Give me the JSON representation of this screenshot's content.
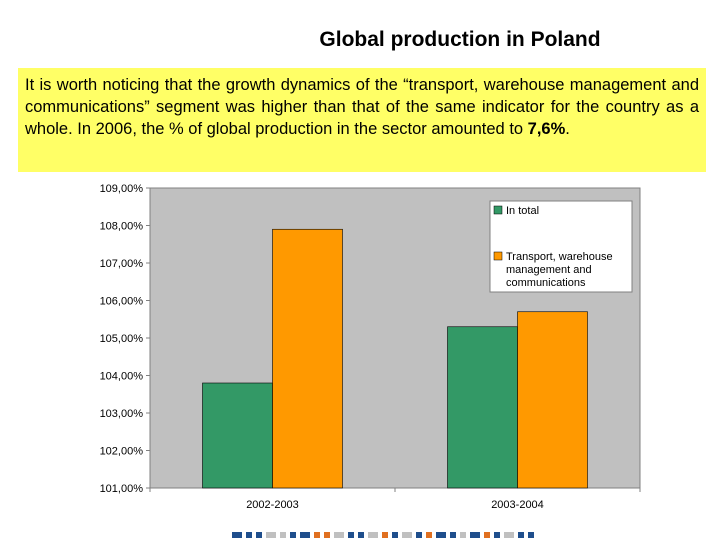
{
  "slide": {
    "title": "Global production in Poland",
    "callout_text": "It is worth noticing that the growth dynamics of the “transport, warehouse management and communications” segment was higher than that of the same indicator for the country as a whole. In 2006, the % of global production in the sector amounted to ",
    "callout_highlight": "7,6%",
    "callout_end": "."
  },
  "chart_data": {
    "type": "bar",
    "categories": [
      "2002-2003",
      "2003-2004"
    ],
    "series": [
      {
        "name": "In total",
        "values": [
          103.8,
          105.3
        ],
        "color": "#339966"
      },
      {
        "name": "Transport, warehouse management and communications",
        "values": [
          107.9,
          105.7
        ],
        "color": "#ff9900"
      }
    ],
    "ylim": [
      101,
      109
    ],
    "yticks": [
      "101,00%",
      "102,00%",
      "103,00%",
      "104,00%",
      "105,00%",
      "106,00%",
      "107,00%",
      "108,00%",
      "109,00%"
    ],
    "plot_background": "#c0c0c0",
    "legend_position": "top-right",
    "legend_lines": [
      [
        "In total"
      ],
      [
        "Transport, warehouse",
        "management and",
        "communications"
      ]
    ]
  }
}
